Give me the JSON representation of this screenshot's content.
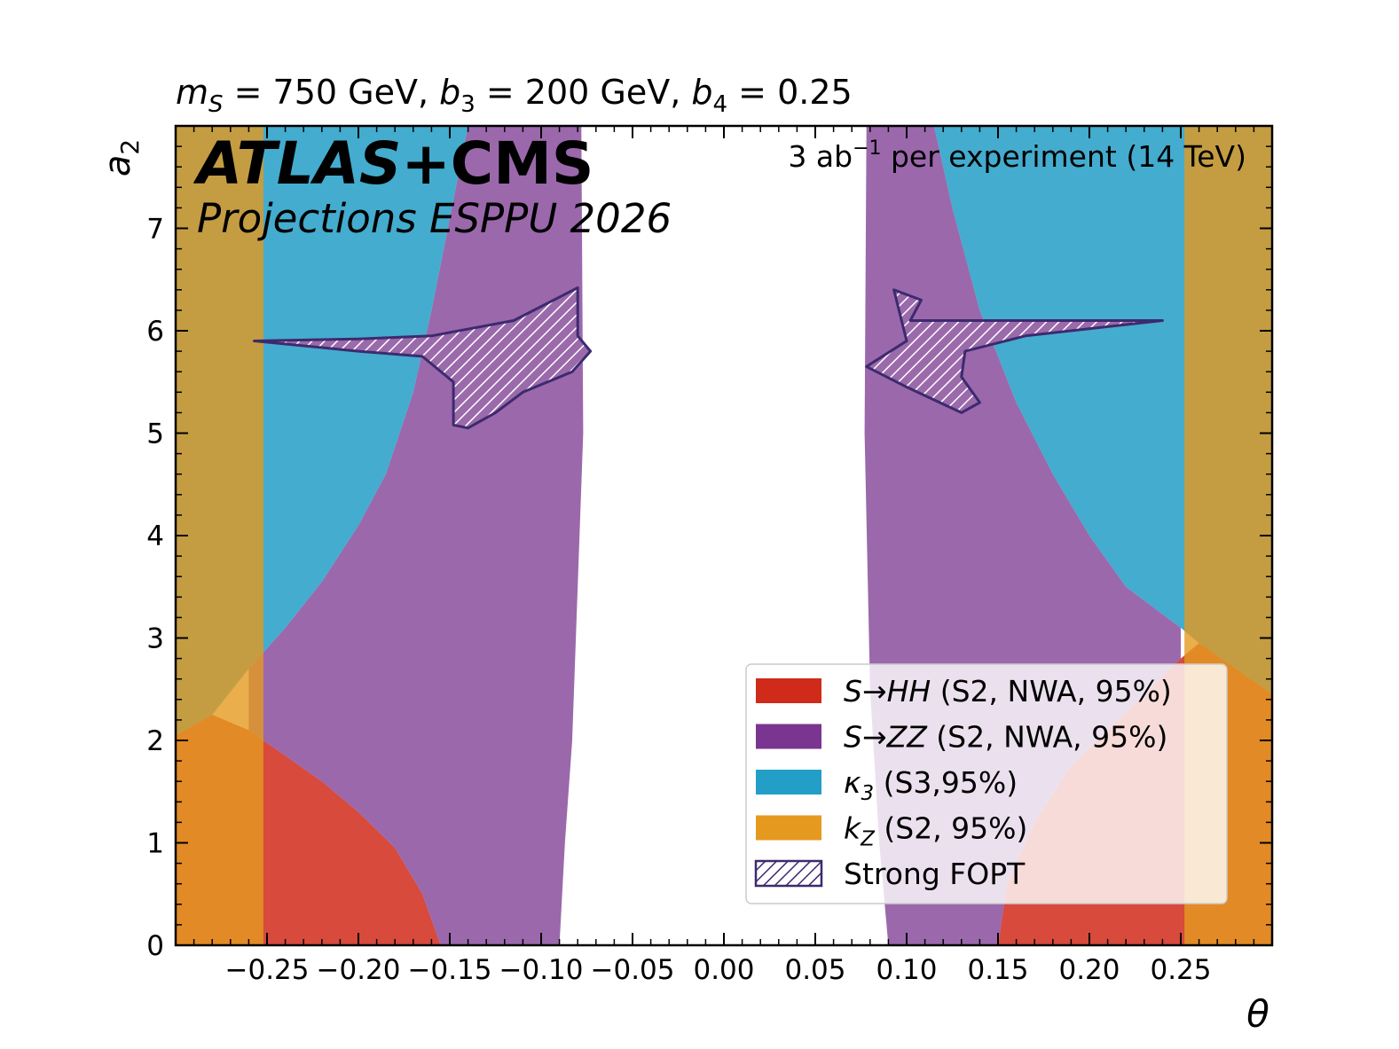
{
  "chart_data": {
    "type": "area",
    "title_parts": {
      "ms_sym": "m",
      "ms_sub": "S",
      "ms_val": " = 750 GeV, ",
      "b3_sym": "b",
      "b3_sub": "3",
      "b3_val": " = 200 GeV, ",
      "b4_sym": "b",
      "b4_sub": "4",
      "b4_val": " = 0.25"
    },
    "xlabel": "θ",
    "ylabel": {
      "sym": "a",
      "sub": "2"
    },
    "xlim": [
      -0.3,
      0.3
    ],
    "ylim": [
      0,
      8
    ],
    "xticks": [
      -0.25,
      -0.2,
      -0.15,
      -0.1,
      -0.05,
      0.0,
      0.05,
      0.1,
      0.15,
      0.2,
      0.25
    ],
    "xtick_labels": [
      "−0.25",
      "−0.20",
      "−0.15",
      "−0.10",
      "−0.05",
      "0.00",
      "0.05",
      "0.10",
      "0.15",
      "0.20",
      "0.25"
    ],
    "yticks": [
      0,
      1,
      2,
      3,
      4,
      5,
      6,
      7
    ],
    "ytick_labels": [
      "0",
      "1",
      "2",
      "3",
      "4",
      "5",
      "6",
      "7"
    ],
    "grid": false,
    "annotations": {
      "experiment_bold": "ATLAS",
      "experiment_rest": "+CMS",
      "projection": "Projections ESPPU 2026",
      "lumi_value": "3 ab",
      "lumi_exp": "−1",
      "lumi_rest": "  per experiment (14 TeV)"
    },
    "legend_position": "lower-right",
    "series": [
      {
        "name": "S→HH (S2, NWA, 95%)",
        "color": "#d02a1a",
        "regions": [
          [
            [
              -0.3,
              0
            ],
            [
              -0.3,
              2.05
            ],
            [
              -0.28,
              2.25
            ],
            [
              -0.26,
              2.1
            ],
            [
              -0.24,
              1.85
            ],
            [
              -0.22,
              1.6
            ],
            [
              -0.2,
              1.3
            ],
            [
              -0.18,
              0.95
            ],
            [
              -0.165,
              0.5
            ],
            [
              -0.155,
              0
            ]
          ],
          [
            [
              0.3,
              0
            ],
            [
              0.3,
              2.45
            ],
            [
              0.28,
              2.7
            ],
            [
              0.26,
              2.95
            ],
            [
              0.25,
              2.8
            ],
            [
              0.23,
              2.45
            ],
            [
              0.21,
              2.1
            ],
            [
              0.19,
              1.75
            ],
            [
              0.17,
              1.2
            ],
            [
              0.155,
              0.6
            ],
            [
              0.15,
              0
            ]
          ]
        ]
      },
      {
        "name": "S→ZZ (S2, NWA, 95%)",
        "color": "#7a3590",
        "regions": [
          [
            [
              -0.26,
              2.7
            ],
            [
              -0.24,
              3.1
            ],
            [
              -0.22,
              3.55
            ],
            [
              -0.2,
              4.1
            ],
            [
              -0.185,
              4.6
            ],
            [
              -0.17,
              5.4
            ],
            [
              -0.16,
              6.2
            ],
            [
              -0.15,
              7.1
            ],
            [
              -0.14,
              8
            ],
            [
              -0.078,
              8
            ],
            [
              -0.077,
              5
            ],
            [
              -0.083,
              2
            ],
            [
              -0.087,
              1
            ],
            [
              -0.09,
              0
            ],
            [
              -0.155,
              0
            ],
            [
              -0.165,
              0.5
            ],
            [
              -0.18,
              0.95
            ],
            [
              -0.2,
              1.3
            ],
            [
              -0.22,
              1.6
            ],
            [
              -0.24,
              1.85
            ],
            [
              -0.26,
              2.1
            ]
          ],
          [
            [
              0.078,
              8
            ],
            [
              0.077,
              5
            ],
            [
              0.08,
              2.5
            ],
            [
              0.085,
              1
            ],
            [
              0.09,
              0
            ],
            [
              0.15,
              0
            ],
            [
              0.155,
              0.6
            ],
            [
              0.17,
              1.2
            ],
            [
              0.19,
              1.75
            ],
            [
              0.21,
              2.1
            ],
            [
              0.23,
              2.45
            ],
            [
              0.25,
              2.8
            ],
            [
              0.25,
              3.1
            ],
            [
              0.22,
              3.5
            ],
            [
              0.2,
              4.0
            ],
            [
              0.18,
              4.6
            ],
            [
              0.16,
              5.3
            ],
            [
              0.14,
              6.2
            ],
            [
              0.125,
              7.2
            ],
            [
              0.115,
              8
            ]
          ]
        ]
      },
      {
        "name": "κ3 (S3,95%)",
        "color": "#239ec6",
        "regions": [
          [
            [
              -0.3,
              2.05
            ],
            [
              -0.3,
              8
            ],
            [
              -0.14,
              8
            ],
            [
              -0.15,
              7.1
            ],
            [
              -0.16,
              6.2
            ],
            [
              -0.17,
              5.4
            ],
            [
              -0.185,
              4.6
            ],
            [
              -0.2,
              4.1
            ],
            [
              -0.22,
              3.55
            ],
            [
              -0.24,
              3.1
            ],
            [
              -0.26,
              2.7
            ],
            [
              -0.28,
              2.25
            ]
          ],
          [
            [
              0.115,
              8
            ],
            [
              0.3,
              8
            ],
            [
              0.3,
              2.45
            ],
            [
              0.28,
              2.7
            ],
            [
              0.26,
              2.95
            ],
            [
              0.25,
              3.1
            ],
            [
              0.22,
              3.5
            ],
            [
              0.2,
              4.0
            ],
            [
              0.18,
              4.6
            ],
            [
              0.16,
              5.3
            ],
            [
              0.14,
              6.2
            ],
            [
              0.125,
              7.2
            ]
          ]
        ]
      },
      {
        "name": "kZ (S2, 95%)",
        "color": "#e59a1f",
        "regions": [
          [
            [
              -0.3,
              0
            ],
            [
              -0.252,
              0
            ],
            [
              -0.252,
              8
            ],
            [
              -0.3,
              8
            ]
          ],
          [
            [
              0.252,
              0
            ],
            [
              0.3,
              0
            ],
            [
              0.3,
              8
            ],
            [
              0.252,
              8
            ]
          ]
        ]
      },
      {
        "name": "Strong FOPT",
        "color": "#3d2a6e",
        "regions": [
          [
            [
              -0.257,
              5.9
            ],
            [
              -0.2,
              5.92
            ],
            [
              -0.16,
              5.95
            ],
            [
              -0.115,
              6.1
            ],
            [
              -0.08,
              6.42
            ],
            [
              -0.08,
              5.95
            ],
            [
              -0.073,
              5.8
            ],
            [
              -0.083,
              5.6
            ],
            [
              -0.11,
              5.4
            ],
            [
              -0.125,
              5.2
            ],
            [
              -0.14,
              5.05
            ],
            [
              -0.148,
              5.08
            ],
            [
              -0.148,
              5.5
            ],
            [
              -0.165,
              5.75
            ],
            [
              -0.2,
              5.8
            ]
          ],
          [
            [
              0.093,
              6.4
            ],
            [
              0.108,
              6.3
            ],
            [
              0.102,
              6.1
            ],
            [
              0.24,
              6.1
            ],
            [
              0.165,
              5.95
            ],
            [
              0.132,
              5.8
            ],
            [
              0.13,
              5.55
            ],
            [
              0.14,
              5.3
            ],
            [
              0.13,
              5.2
            ],
            [
              0.1,
              5.45
            ],
            [
              0.078,
              5.65
            ],
            [
              0.1,
              5.9
            ]
          ]
        ]
      }
    ],
    "legend_entries": [
      {
        "label_main": "S→HH",
        "label_rest": "  (S2, NWA, 95%)",
        "color": "#d02a1a"
      },
      {
        "label_main": "S→ZZ",
        "label_rest": "  (S2, NWA, 95%)",
        "color": "#7a3590"
      },
      {
        "label_main": "κ",
        "label_sub": "3",
        "label_rest": "  (S3,95%)",
        "color": "#239ec6"
      },
      {
        "label_main": "k",
        "label_sub": "Z",
        "label_rest": "  (S2, 95%)",
        "color": "#e59a1f"
      },
      {
        "label_main": "Strong FOPT",
        "color": "#3d2a6e",
        "hatched": true
      }
    ]
  }
}
